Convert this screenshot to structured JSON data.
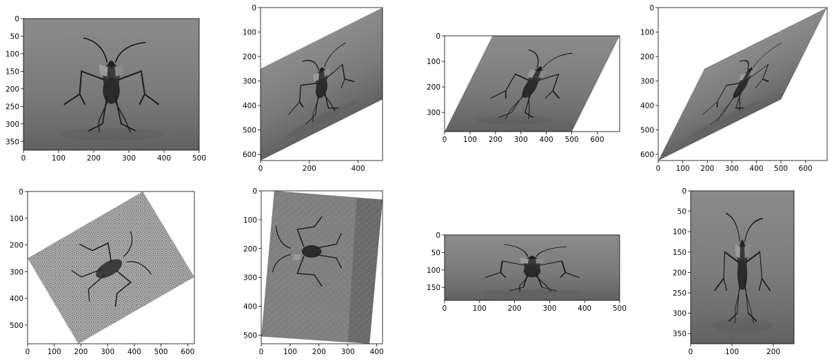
{
  "panels": [
    {
      "id": "original",
      "x_ticks": [
        "0",
        "100",
        "200",
        "300",
        "400",
        "500"
      ],
      "y_ticks": [
        "0",
        "50",
        "100",
        "150",
        "200",
        "250",
        "300",
        "350"
      ]
    },
    {
      "id": "shear-vertical",
      "x_ticks": [
        "0",
        "200",
        "400"
      ],
      "y_ticks": [
        "0",
        "100",
        "200",
        "300",
        "400",
        "500",
        "600"
      ]
    },
    {
      "id": "shear-horizontal",
      "x_ticks": [
        "0",
        "100",
        "200",
        "300",
        "400",
        "500",
        "600"
      ],
      "y_ticks": [
        "0",
        "100",
        "200",
        "300"
      ]
    },
    {
      "id": "shear-both",
      "x_ticks": [
        "0",
        "100",
        "200",
        "300",
        "400",
        "500",
        "600"
      ],
      "y_ticks": [
        "0",
        "100",
        "200",
        "300",
        "400",
        "500",
        "600"
      ]
    },
    {
      "id": "rotated-noise-pattern",
      "x_ticks": [
        "0",
        "100",
        "200",
        "300",
        "400",
        "500",
        "600"
      ],
      "y_ticks": [
        "0",
        "100",
        "200",
        "300",
        "400",
        "500"
      ]
    },
    {
      "id": "rotated-speckle",
      "x_ticks": [
        "0",
        "100",
        "200",
        "300",
        "400"
      ],
      "y_ticks": [
        "0",
        "100",
        "200",
        "300",
        "400",
        "500"
      ]
    },
    {
      "id": "squashed-vertical",
      "x_ticks": [
        "0",
        "100",
        "200",
        "300",
        "400",
        "500"
      ],
      "y_ticks": [
        "0",
        "50",
        "100",
        "150"
      ]
    },
    {
      "id": "squashed-horizontal",
      "x_ticks": [
        "0",
        "100",
        "200"
      ],
      "y_ticks": [
        "0",
        "50",
        "100",
        "150",
        "200",
        "250",
        "300",
        "350"
      ]
    }
  ]
}
